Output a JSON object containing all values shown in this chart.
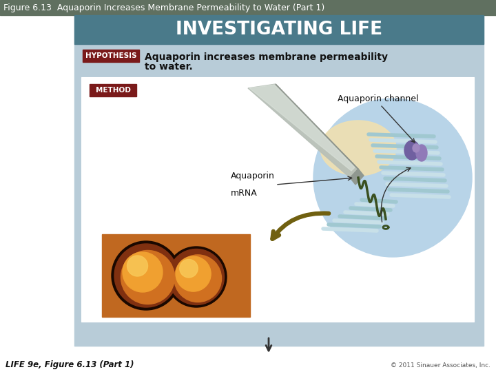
{
  "title": "Figure 6.13  Aquaporin Increases Membrane Permeability to Water (Part 1)",
  "title_color": "#ffffff",
  "title_bg_color": "#607060",
  "header_text": "INVESTIGATING LIFE",
  "header_bg_color": "#4a7a8a",
  "header_text_color": "#ffffff",
  "outer_bg_color": "#b8ccd8",
  "inner_bg_color": "#ffffff",
  "hypothesis_label": "HYPOTHESIS",
  "hypothesis_label_bg": "#7a1a1a",
  "hypothesis_label_color": "#ffffff",
  "hypothesis_text_line1": "Aquaporin increases membrane permeability",
  "hypothesis_text_line2": "to water.",
  "method_label": "METHOD",
  "method_label_bg": "#7a1a1a",
  "method_label_color": "#ffffff",
  "aquaporin_channel_label": "Aquaporin channel",
  "aquaporin_mrna_label_line1": "Aquaporin",
  "aquaporin_mrna_label_line2": "mRNA",
  "footer_left": "LIFE 9e, Figure 6.13 (Part 1)",
  "footer_right": "© 2011 Sinauer Associates, Inc.",
  "cell_circle_color": "#b8d4e8",
  "cream_color": "#f0e0b0",
  "membrane_color1": "#a0c8d0",
  "membrane_color2": "#c8e0e8",
  "protein_color": "#8878a8",
  "mrna_color": "#3a5020",
  "needle_color": "#b0b8b0",
  "olive_arrow_color": "#706010",
  "photo_bg_color": "#c06820",
  "sphere_outer": "#703010",
  "sphere_mid": "#d07020",
  "sphere_inner": "#f0a030",
  "sphere_bright": "#f8c858"
}
